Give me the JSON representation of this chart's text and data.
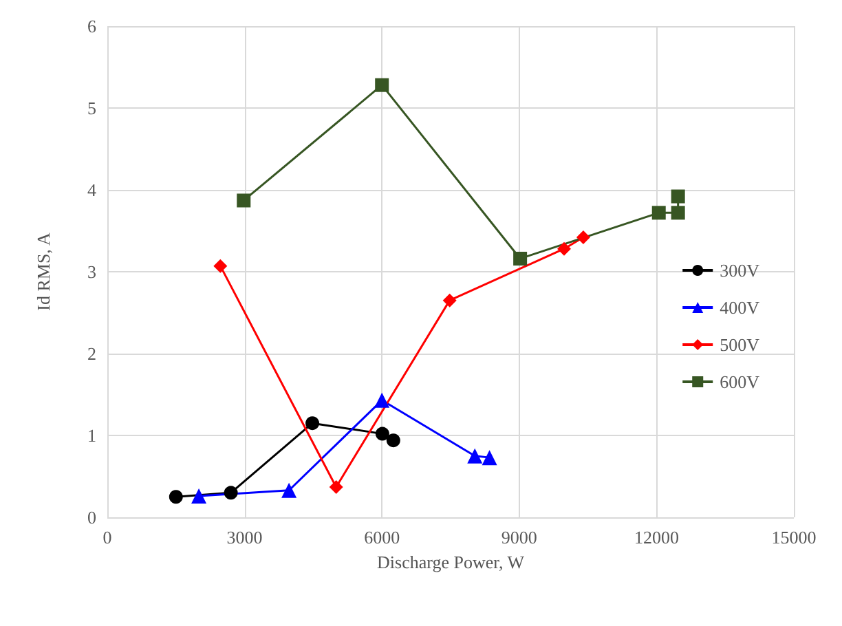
{
  "chart_data": {
    "type": "line",
    "xlabel": "Discharge Power, W",
    "ylabel": "Id RMS, A",
    "xlim": [
      0,
      15000
    ],
    "xticks": [
      0,
      3000,
      6000,
      9000,
      12000,
      15000
    ],
    "ylim": [
      0,
      6
    ],
    "yticks": [
      0,
      1,
      2,
      3,
      4,
      5,
      6
    ],
    "grid": true,
    "legend": "right",
    "series": [
      {
        "name": "300V",
        "color": "#000000",
        "marker": "circle",
        "x": [
          1500,
          2700,
          4480,
          6010,
          6250
        ],
        "values": [
          0.25,
          0.3,
          1.15,
          1.02,
          0.94
        ]
      },
      {
        "name": "400V",
        "color": "#0000ff",
        "marker": "triangle",
        "x": [
          2000,
          3970,
          6000,
          8030,
          8350
        ],
        "values": [
          0.26,
          0.33,
          1.43,
          0.75,
          0.73
        ]
      },
      {
        "name": "500V",
        "color": "#ff0000",
        "marker": "diamond",
        "x": [
          2470,
          5000,
          7480,
          9980,
          10400
        ],
        "values": [
          3.07,
          0.37,
          2.65,
          3.28,
          3.42
        ]
      },
      {
        "name": "600V",
        "color": "#375623",
        "marker": "square",
        "x": [
          2980,
          6000,
          9020,
          12050,
          12470,
          12470
        ],
        "values": [
          3.87,
          5.28,
          3.16,
          3.72,
          3.72,
          3.92
        ]
      }
    ]
  }
}
